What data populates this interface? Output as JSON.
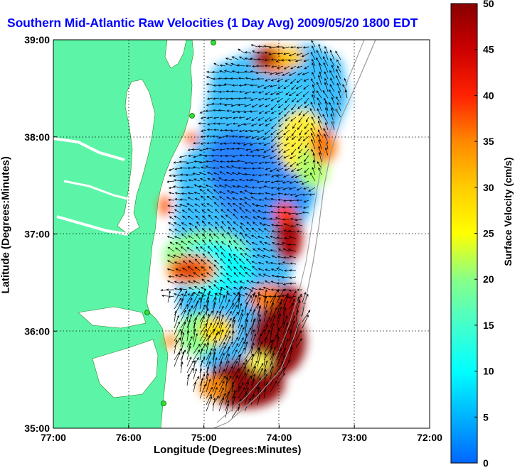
{
  "title": "Southern Mid-Atlantic Raw Velocities (1 Day Avg) 2009/05/20 1800 EDT",
  "xlabel": "Longitude (Degrees:Minutes)",
  "ylabel": "Latitude (Degrees:Minutes)",
  "colorbar": {
    "label": "Surface Velocity (cm/s)",
    "min": 0,
    "max": 50,
    "ticks": [
      "0",
      "5",
      "10",
      "15",
      "20",
      "25",
      "30",
      "35",
      "40",
      "45",
      "50"
    ]
  },
  "axes": {
    "lon_ticks": [
      "77:00",
      "76:00",
      "75:00",
      "74:00",
      "73:00",
      "72:00"
    ],
    "lat_ticks": [
      "39:00",
      "38:00",
      "37:00",
      "36:00",
      "35:00"
    ],
    "lon_range": [
      -77,
      -72
    ],
    "lat_range": [
      35,
      39
    ]
  },
  "colors": {
    "land": "#5cf5a8",
    "water": "#ffffff",
    "title": "#0000ff"
  }
}
